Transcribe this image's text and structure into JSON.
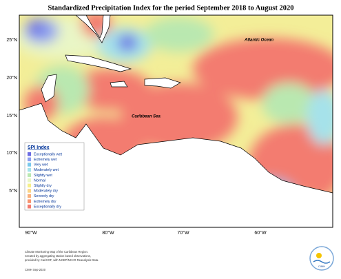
{
  "title": "Standardized Precipitation Index for the period September 2018 to August 2020",
  "map": {
    "lat_labels": [
      "25°N",
      "20°N",
      "15°N",
      "10°N",
      "5°N"
    ],
    "lon_labels": [
      "90°W",
      "80°W",
      "70°W",
      "60°W"
    ],
    "place_labels": [
      "Atlantic Ocean",
      "Caribbean Sea"
    ]
  },
  "legend": {
    "title": "SPI Index",
    "items": [
      {
        "label": "Exceptionally wet",
        "color": "#6b6be3"
      },
      {
        "label": "Extremely wet",
        "color": "#8c9ff0"
      },
      {
        "label": "Very wet",
        "color": "#79c8ec"
      },
      {
        "label": "Moderately wet",
        "color": "#a6e2ea"
      },
      {
        "label": "Slightly wet",
        "color": "#b9e8b0"
      },
      {
        "label": "Normal",
        "color": "#e9f6c6"
      },
      {
        "label": "Slightly dry",
        "color": "#f6f08a"
      },
      {
        "label": "Moderately dry",
        "color": "#fbd488"
      },
      {
        "label": "Severely dry",
        "color": "#f9b07a"
      },
      {
        "label": "Extremely dry",
        "color": "#f79470"
      },
      {
        "label": "Exceptionally dry",
        "color": "#f37b6f"
      }
    ]
  },
  "footer": {
    "lines": [
      "Climate Monitoring Map of the Caribbean Region.",
      "Created by aggregating station based observations,",
      "provided by CariCOF, with NCEP/NCAR Reanalysis Data."
    ],
    "credit": "CIMH Sep-2020",
    "logo": "CIMH"
  }
}
